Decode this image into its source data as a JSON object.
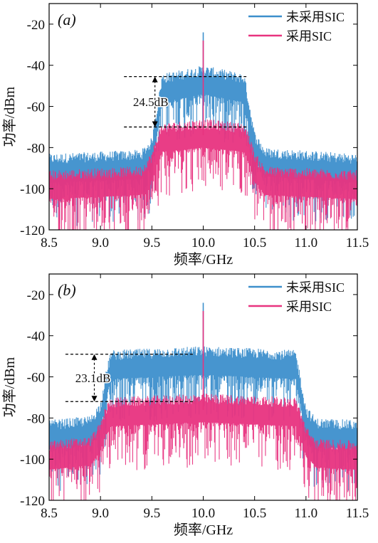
{
  "chart_data": [
    {
      "type": "line",
      "panel_label": "(a)",
      "xlabel": "频率/GHz",
      "ylabel": "功率/dBm",
      "xlim": [
        8.5,
        11.5
      ],
      "ylim": [
        -120,
        -10
      ],
      "xticks": [
        "8.5",
        "9.0",
        "9.5",
        "10.0",
        "10.5",
        "11.0",
        "11.5"
      ],
      "yticks": [
        "-20",
        "-40",
        "-60",
        "-80",
        "-100",
        "-120"
      ],
      "legend_position": "top-right",
      "annotation": {
        "text": "24.5dB",
        "y_top": -45.5,
        "y_bottom": -70,
        "x": 9.52
      },
      "series": [
        {
          "name": "未采用SIC",
          "color": "#3d8fcc",
          "x": [
            8.5,
            9.4,
            9.5,
            9.55,
            9.6,
            10.0,
            10.4,
            10.45,
            10.5,
            10.6,
            11.5
          ],
          "values": [
            -91,
            -89,
            -83,
            -68,
            -52,
            -48,
            -52,
            -66,
            -80,
            -88,
            -91
          ],
          "spike": {
            "x": 10.0,
            "y": -24
          }
        },
        {
          "name": "采用SIC",
          "color": "#e8337f",
          "x": [
            8.5,
            9.4,
            9.5,
            9.55,
            9.6,
            10.0,
            10.4,
            10.45,
            10.5,
            10.6,
            11.5
          ],
          "values": [
            -99,
            -97,
            -90,
            -82,
            -76,
            -74,
            -76,
            -82,
            -90,
            -97,
            -99
          ],
          "spike": {
            "x": 10.0,
            "y": -28
          }
        }
      ]
    },
    {
      "type": "line",
      "panel_label": "(b)",
      "xlabel": "频率/GHz",
      "ylabel": "功率/dBm",
      "xlim": [
        8.5,
        11.5
      ],
      "ylim": [
        -120,
        -10
      ],
      "xticks": [
        "8.5",
        "9.0",
        "9.5",
        "10.0",
        "10.5",
        "11.0",
        "11.5"
      ],
      "yticks": [
        "-20",
        "-40",
        "-60",
        "-80",
        "-100",
        "-120"
      ],
      "legend_position": "top-right",
      "annotation": {
        "text": "23.1dB",
        "y_top": -49,
        "y_bottom": -72,
        "x": 8.95
      },
      "series": [
        {
          "name": "未采用SIC",
          "color": "#3d8fcc",
          "x": [
            8.5,
            8.9,
            9.0,
            9.05,
            9.1,
            10.0,
            10.9,
            10.95,
            11.0,
            11.1,
            11.5
          ],
          "values": [
            -89,
            -87,
            -80,
            -66,
            -55,
            -53,
            -55,
            -68,
            -82,
            -88,
            -89
          ],
          "spike": {
            "x": 10.0,
            "y": -24
          }
        },
        {
          "name": "采用SIC",
          "color": "#e8337f",
          "x": [
            8.5,
            8.9,
            9.0,
            9.05,
            9.1,
            10.0,
            10.9,
            10.95,
            11.0,
            11.1,
            11.5
          ],
          "values": [
            -99,
            -97,
            -90,
            -82,
            -78,
            -76,
            -78,
            -84,
            -92,
            -98,
            -99
          ],
          "spike": {
            "x": 10.0,
            "y": -28
          }
        }
      ]
    }
  ]
}
